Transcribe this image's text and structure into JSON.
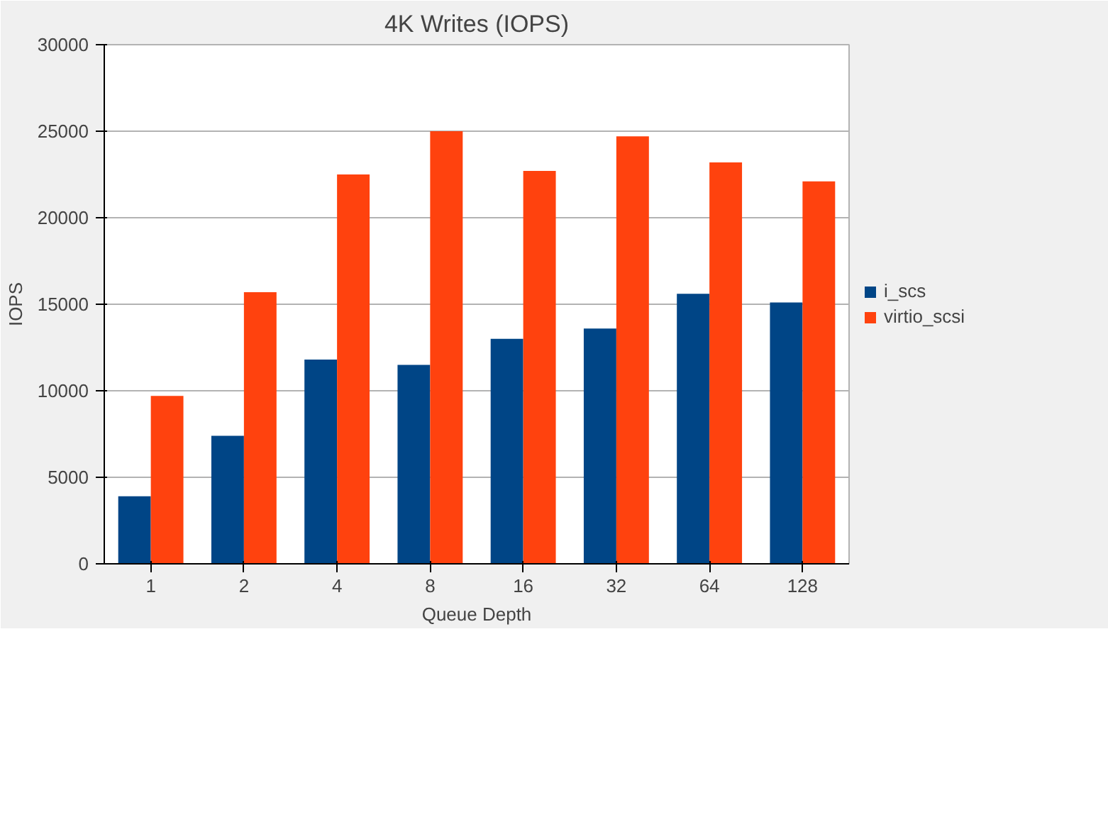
{
  "chart_data": {
    "type": "bar",
    "title": "4K Writes (IOPS)",
    "xlabel": "Queue Depth",
    "ylabel": "IOPS",
    "categories": [
      "1",
      "2",
      "4",
      "8",
      "16",
      "32",
      "64",
      "128"
    ],
    "series": [
      {
        "name": "i_scs",
        "color": "#004586",
        "values": [
          3900,
          7400,
          11800,
          11500,
          13000,
          13600,
          15600,
          15100
        ]
      },
      {
        "name": "virtio_scsi",
        "color": "#ff420e",
        "values": [
          9700,
          15700,
          22500,
          25000,
          22700,
          24700,
          23200,
          22100
        ]
      }
    ],
    "ylim": [
      0,
      30000
    ],
    "yticks": [
      0,
      5000,
      10000,
      15000,
      20000,
      25000,
      30000
    ],
    "grid": "y",
    "legend": "right"
  }
}
